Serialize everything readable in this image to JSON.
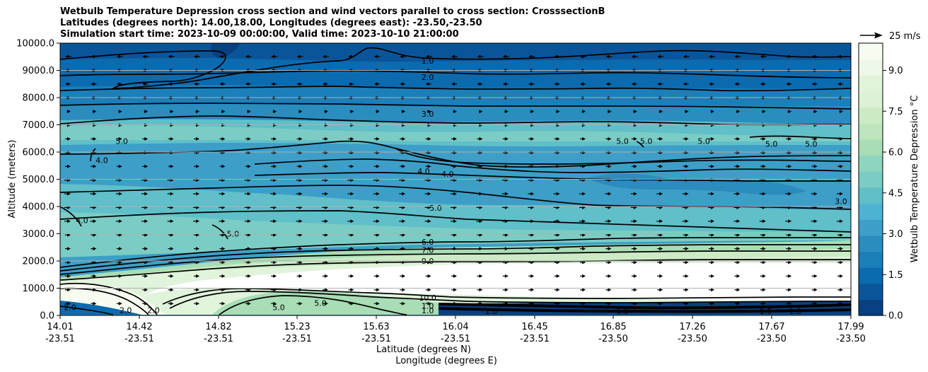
{
  "title": {
    "line1": "Wetbulb Temperature Depression cross section and wind vectors parallel to cross section: CrosssectionB",
    "line2": "Latitudes (degrees north): 14.00,18.00, Longitudes (degrees east): -23.50,-23.50",
    "line3": "Simulation start time: 2023-10-09 00:00:00, Valid time: 2023-10-10 21:00:00"
  },
  "chart_data": {
    "type": "heatmap",
    "title": "Wetbulb Temperature Depression cross section and wind vectors parallel to cross section: CrosssectionB",
    "ylabel": "Altitude (meters)",
    "xlabel_lat": "Latitude (degrees N)",
    "xlabel_lon": "Longitude (degrees E)",
    "ylim": [
      0,
      10000
    ],
    "xlim": [
      14.01,
      17.99
    ],
    "y_ticks": [
      "0.0",
      "1000.0",
      "2000.0",
      "3000.0",
      "4000.0",
      "5000.0",
      "6000.0",
      "7000.0",
      "8000.0",
      "9000.0",
      "10000.0"
    ],
    "x_ticks": [
      {
        "lat": "14.01",
        "lon": "-23.51"
      },
      {
        "lat": "14.42",
        "lon": "-23.51"
      },
      {
        "lat": "14.82",
        "lon": "-23.51"
      },
      {
        "lat": "15.23",
        "lon": "-23.51"
      },
      {
        "lat": "15.63",
        "lon": "-23.51"
      },
      {
        "lat": "16.04",
        "lon": "-23.51"
      },
      {
        "lat": "16.45",
        "lon": "-23.51"
      },
      {
        "lat": "16.85",
        "lon": "-23.50"
      },
      {
        "lat": "17.26",
        "lon": "-23.50"
      },
      {
        "lat": "17.67",
        "lon": "-23.50"
      },
      {
        "lat": "17.99",
        "lon": "-23.50"
      }
    ],
    "colorbar": {
      "label": "Wetbulb Temperature Depression $^\\circ$C",
      "display_label": "Wetbulb Temperature Depression °C",
      "range": [
        0,
        10
      ],
      "ticks": [
        "0.0",
        "1.5",
        "3.0",
        "4.5",
        "6.0",
        "7.5",
        "9.0"
      ],
      "colors_low_to_high": [
        "#084081",
        "#0a559a",
        "#0c6aaf",
        "#1b7fba",
        "#2b8cbe",
        "#3d9fc8",
        "#4eb3d3",
        "#60bfc8",
        "#7bccc4",
        "#8ed4be",
        "#a8ddb5",
        "#bde5be",
        "#ccebc5",
        "#dcf1d5",
        "#e0f3db",
        "#eef8e8",
        "#f7fcf0"
      ]
    },
    "quiver_key": {
      "label": "25 m/s",
      "speed": 25
    },
    "contour_labels": [
      {
        "text": "1.0",
        "lat": 15.86,
        "alt": 9350
      },
      {
        "text": "2.0",
        "lat": 15.86,
        "alt": 8750
      },
      {
        "text": "3.0",
        "lat": 15.86,
        "alt": 7400
      },
      {
        "text": "4.0",
        "lat": 15.84,
        "alt": 5300
      },
      {
        "text": "4.0",
        "lat": 15.96,
        "alt": 5200
      },
      {
        "text": "5.0",
        "lat": 15.9,
        "alt": 3950
      },
      {
        "text": "6.0",
        "lat": 15.86,
        "alt": 2700
      },
      {
        "text": "7.0",
        "lat": 15.86,
        "alt": 2400
      },
      {
        "text": "9.0",
        "lat": 15.86,
        "alt": 2000
      },
      {
        "text": "5.0",
        "lat": 14.32,
        "alt": 6400
      },
      {
        "text": "4.0",
        "lat": 14.22,
        "alt": 5700
      },
      {
        "text": "4.0",
        "lat": 14.12,
        "alt": 3500
      },
      {
        "text": "5.0",
        "lat": 14.88,
        "alt": 3000
      },
      {
        "text": "5.0",
        "lat": 16.84,
        "alt": 6400
      },
      {
        "text": "5.0",
        "lat": 16.96,
        "alt": 6400
      },
      {
        "text": "5.0",
        "lat": 17.25,
        "alt": 6400
      },
      {
        "text": "5.0",
        "lat": 17.59,
        "alt": 6300
      },
      {
        "text": "5.0",
        "lat": 17.79,
        "alt": 6300
      },
      {
        "text": "3.0",
        "lat": 17.94,
        "alt": 4200
      },
      {
        "text": "2.0",
        "lat": 14.06,
        "alt": 300
      },
      {
        "text": "2.0",
        "lat": 14.34,
        "alt": 200
      },
      {
        "text": "2.0",
        "lat": 14.48,
        "alt": 200
      },
      {
        "text": "1.0",
        "lat": 16.18,
        "alt": 150
      },
      {
        "text": "1.0",
        "lat": 16.84,
        "alt": 150
      },
      {
        "text": "1.0",
        "lat": 17.56,
        "alt": 150
      },
      {
        "text": "1.0",
        "lat": 17.71,
        "alt": 150
      },
      {
        "text": "10.0",
        "lat": 15.86,
        "alt": 650
      },
      {
        "text": "1.0",
        "lat": 15.86,
        "alt": 350
      },
      {
        "text": "1.0",
        "lat": 15.86,
        "alt": 180
      },
      {
        "text": "5.0",
        "lat": 15.11,
        "alt": 300
      },
      {
        "text": "5.0",
        "lat": 15.32,
        "alt": 450
      }
    ],
    "filled_bands": [
      {
        "level": 1.0,
        "alt": 9600
      },
      {
        "level": 2.0,
        "alt": 8500
      },
      {
        "level": 3.0,
        "alt": 7600
      },
      {
        "level": 4.0,
        "alt": 6400
      },
      {
        "level": 5.0,
        "alt": 5000
      },
      {
        "level": 6.0,
        "alt": 3200
      },
      {
        "level": 7.5,
        "alt": 2600
      },
      {
        "level": 9.0,
        "alt": 2200
      }
    ]
  }
}
